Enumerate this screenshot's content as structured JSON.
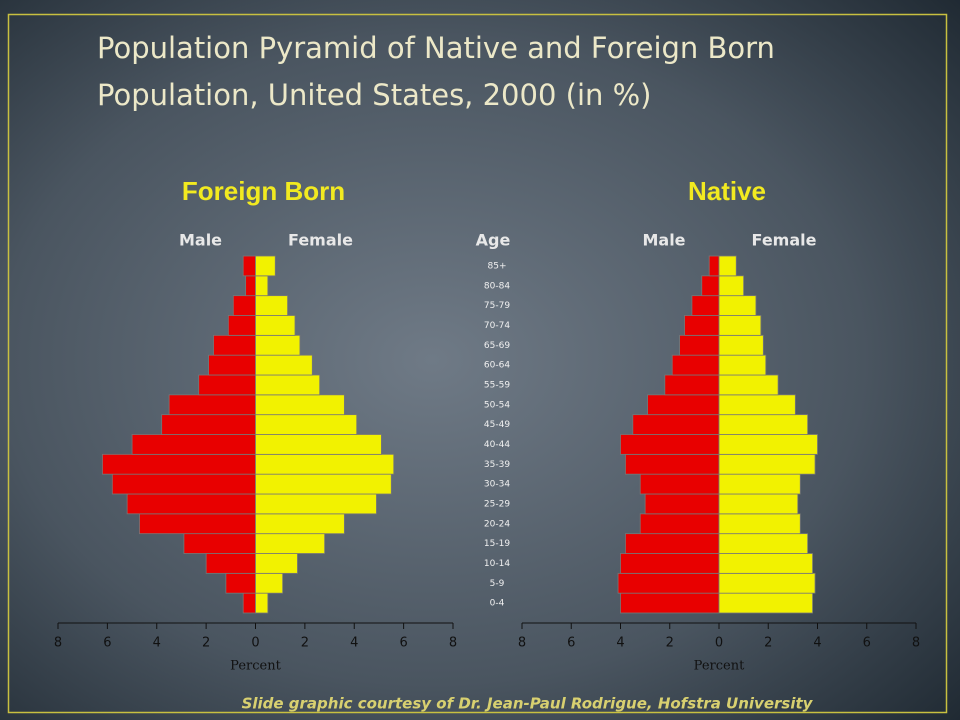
{
  "title": [
    "Population Pyramid of Native and Foreign Born",
    "Population, United States, 2000 (in %)"
  ],
  "credit": "Slide graphic courtesy of Dr. Jean-Paul Rodrigue, Hofstra University",
  "age_axis": {
    "title": "Age",
    "categories": [
      "0-4",
      "5-9",
      "10-14",
      "15-19",
      "20-24",
      "25-29",
      "30-34",
      "35-39",
      "40-44",
      "45-49",
      "50-54",
      "55-59",
      "60-64",
      "65-69",
      "70-74",
      "75-79",
      "80-84",
      "85+"
    ]
  },
  "chart_data": [
    {
      "type": "pyramid",
      "title": "Foreign Born",
      "xlabel": "Percent",
      "series": [
        {
          "name": "Male",
          "color": "#e80000",
          "values": [
            0.5,
            1.2,
            2.0,
            2.9,
            4.7,
            5.2,
            5.8,
            6.2,
            5.0,
            3.8,
            3.5,
            2.3,
            1.9,
            1.7,
            1.1,
            0.9,
            0.4,
            0.5
          ]
        },
        {
          "name": "Female",
          "color": "#f2f200",
          "values": [
            0.5,
            1.1,
            1.7,
            2.8,
            3.6,
            4.9,
            5.5,
            5.6,
            5.1,
            4.1,
            3.6,
            2.6,
            2.3,
            1.8,
            1.6,
            1.3,
            0.5,
            0.8
          ]
        }
      ],
      "xlim": [
        -8,
        8
      ],
      "xticks": [
        {
          "value": -8,
          "label": "8"
        },
        {
          "value": -6,
          "label": "6"
        },
        {
          "value": -4,
          "label": "4"
        },
        {
          "value": -2,
          "label": "2"
        },
        0,
        2,
        4,
        6,
        8
      ]
    },
    {
      "type": "pyramid",
      "title": "Native",
      "xlabel": "Percent",
      "series": [
        {
          "name": "Male",
          "color": "#e80000",
          "values": [
            4.0,
            4.1,
            4.0,
            3.8,
            3.2,
            3.0,
            3.2,
            3.8,
            4.0,
            3.5,
            2.9,
            2.2,
            1.9,
            1.6,
            1.4,
            1.1,
            0.7,
            0.4
          ]
        },
        {
          "name": "Female",
          "color": "#f2f200",
          "values": [
            3.8,
            3.9,
            3.8,
            3.6,
            3.3,
            3.2,
            3.3,
            3.9,
            4.0,
            3.6,
            3.1,
            2.4,
            1.9,
            1.8,
            1.7,
            1.5,
            1.0,
            0.7
          ]
        }
      ],
      "xlim": [
        -8,
        8
      ],
      "xticks": [
        {
          "value": -8,
          "label": "8"
        },
        {
          "value": -6,
          "label": "6"
        },
        {
          "value": -4,
          "label": "4"
        },
        {
          "value": -2,
          "label": "2"
        },
        0,
        2,
        4,
        6,
        8
      ]
    }
  ]
}
